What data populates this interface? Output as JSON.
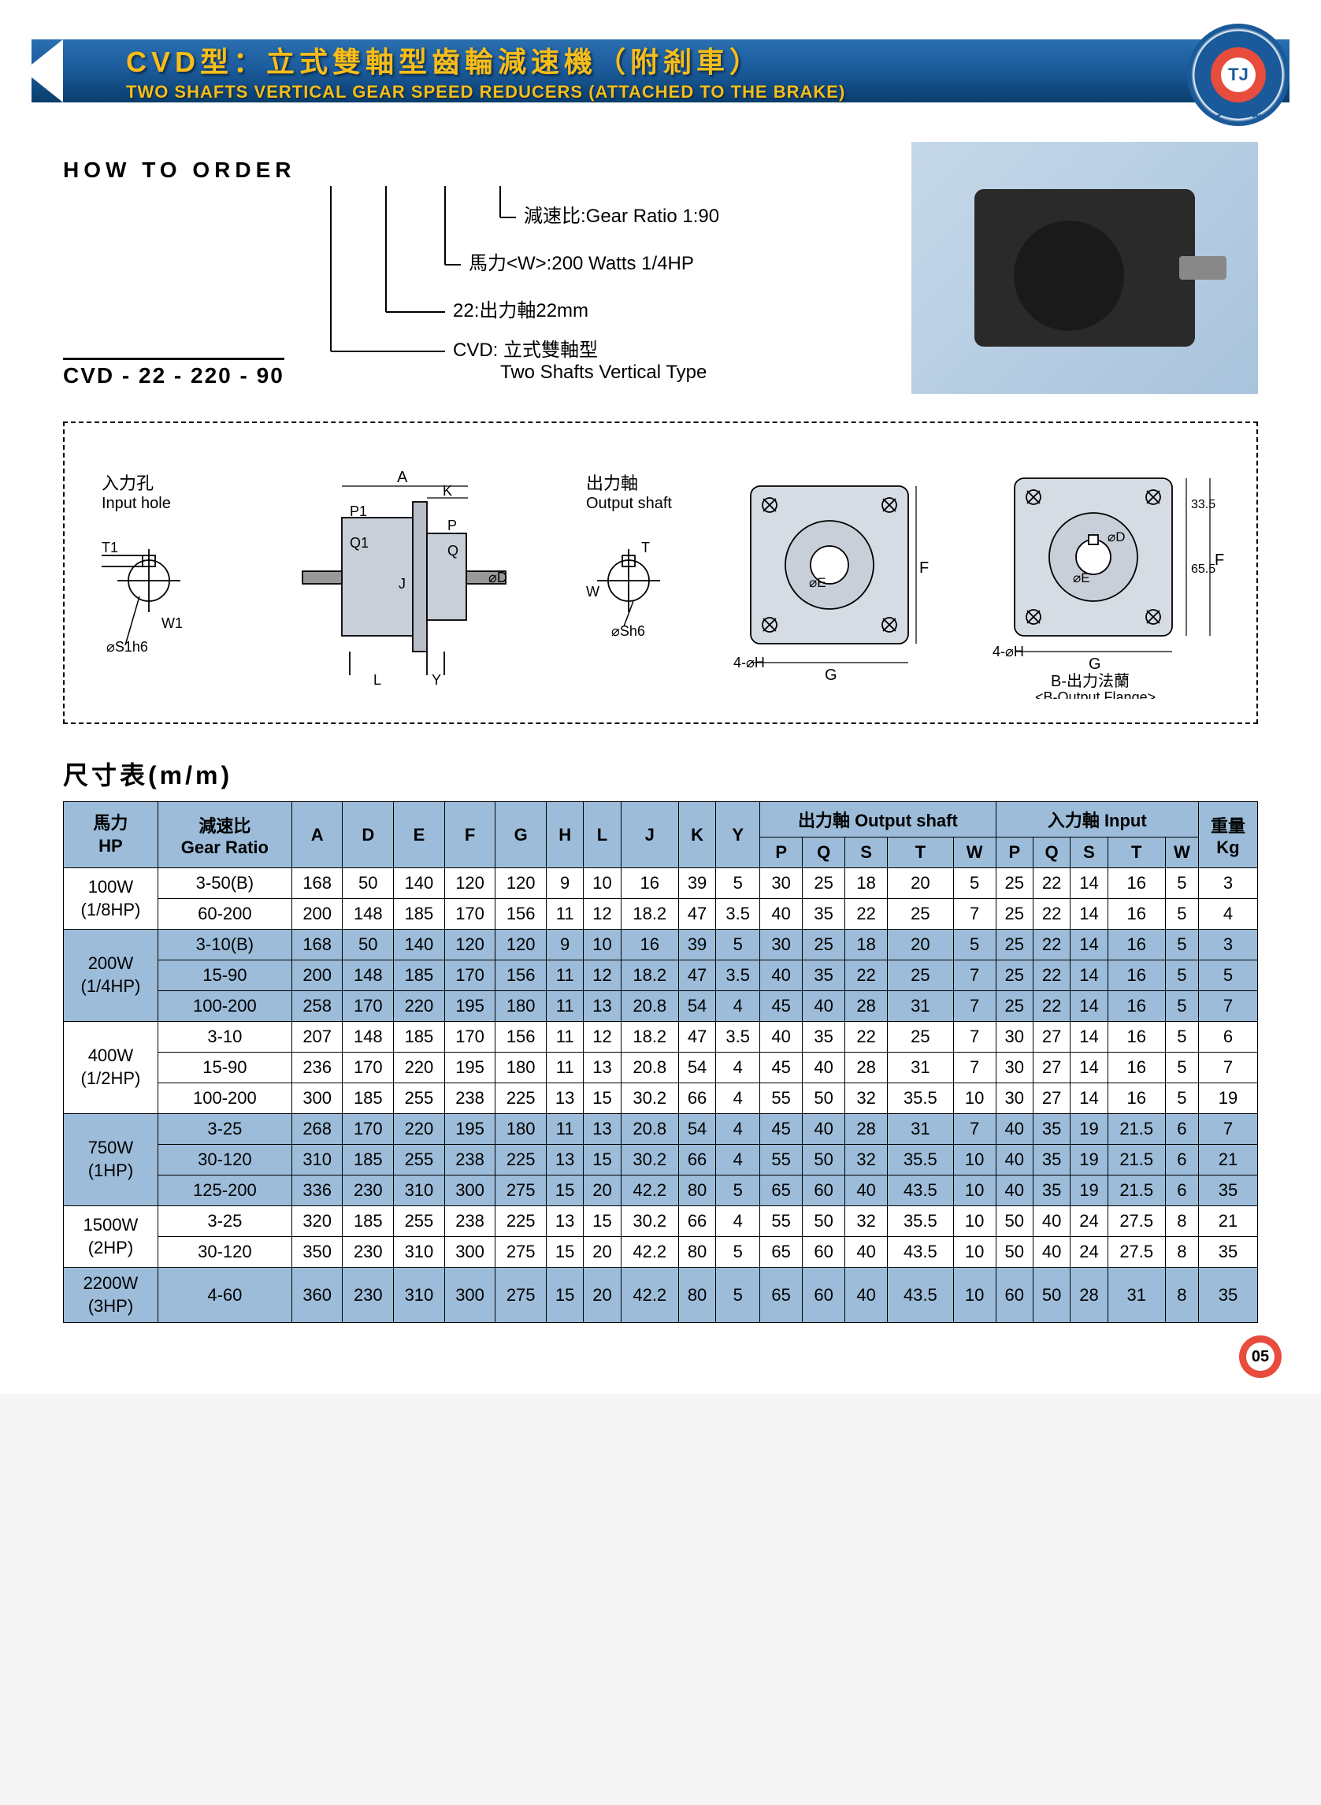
{
  "header": {
    "title_cn": "CVD型：立式雙軸型齒輪減速機（附剎車）",
    "title_en": "TWO SHAFTS VERTICAL GEAR SPEED REDUCERS (ATTACHED TO THE BRAKE)",
    "logo_tj": "TJ",
    "logo_text": "天機"
  },
  "order": {
    "title": "HOW  TO  ORDER",
    "code": "CVD - 22 - 220 - 90",
    "lines": [
      "減速比:Gear Ratio 1:90",
      "馬力<W>:200 Watts 1/4HP",
      "22:出力軸22mm",
      "CVD: 立式雙軸型"
    ],
    "line4_sub": "Two Shafts Vertical Type"
  },
  "diagram": {
    "input_hole_cn": "入力孔",
    "input_hole_en": "Input hole",
    "output_shaft_cn": "出力軸",
    "output_shaft_en": "Output shaft",
    "b_flange_cn": "B-出力法蘭",
    "b_flange_en": "<B-Output Flange>",
    "labels": {
      "A": "A",
      "K": "K",
      "P1": "P1",
      "Q1": "Q1",
      "P": "P",
      "Q": "Q",
      "T1": "T1",
      "W1": "W1",
      "T": "T",
      "W": "W",
      "J": "J",
      "D": "⌀D",
      "S1h6": "⌀S1h6",
      "Sh6": "⌀Sh6",
      "L": "L",
      "Y": "Y",
      "E": "⌀E",
      "F": "F",
      "G": "G",
      "H": "4-⌀H",
      "d33": "33.5",
      "d65": "65.5"
    }
  },
  "table": {
    "title": "尺寸表(m/m)",
    "colors": {
      "header_bg": "#9cbcd9",
      "border": "#000000"
    },
    "headers": {
      "hp": "馬力\nHP",
      "ratio": "減速比\nGear Ratio",
      "main": [
        "A",
        "D",
        "E",
        "F",
        "G",
        "H",
        "L",
        "J",
        "K",
        "Y"
      ],
      "out": "出力軸 Output shaft",
      "in": "入力軸 Input",
      "sub": [
        "P",
        "Q",
        "S",
        "T",
        "W"
      ],
      "kg": "重量\nKg"
    },
    "groups": [
      {
        "hp": "100W\n(1/8HP)",
        "blue": false,
        "rows": [
          {
            "ratio": "3-50(B)",
            "v": [
              168,
              50,
              140,
              120,
              120,
              9,
              10,
              16,
              39,
              5,
              30,
              25,
              18,
              20,
              5,
              25,
              22,
              14,
              16,
              5,
              3
            ]
          },
          {
            "ratio": "60-200",
            "v": [
              200,
              148,
              185,
              170,
              156,
              11,
              12,
              18.2,
              47,
              3.5,
              40,
              35,
              22,
              25,
              7,
              25,
              22,
              14,
              16,
              5,
              4
            ]
          }
        ]
      },
      {
        "hp": "200W\n(1/4HP)",
        "blue": true,
        "rows": [
          {
            "ratio": "3-10(B)",
            "v": [
              168,
              50,
              140,
              120,
              120,
              9,
              10,
              16,
              39,
              5,
              30,
              25,
              18,
              20,
              5,
              25,
              22,
              14,
              16,
              5,
              3
            ]
          },
          {
            "ratio": "15-90",
            "v": [
              200,
              148,
              185,
              170,
              156,
              11,
              12,
              18.2,
              47,
              3.5,
              40,
              35,
              22,
              25,
              7,
              25,
              22,
              14,
              16,
              5,
              5
            ]
          },
          {
            "ratio": "100-200",
            "v": [
              258,
              170,
              220,
              195,
              180,
              11,
              13,
              20.8,
              54,
              4,
              45,
              40,
              28,
              31,
              7,
              25,
              22,
              14,
              16,
              5,
              7
            ]
          }
        ]
      },
      {
        "hp": "400W\n(1/2HP)",
        "blue": false,
        "rows": [
          {
            "ratio": "3-10",
            "v": [
              207,
              148,
              185,
              170,
              156,
              11,
              12,
              18.2,
              47,
              3.5,
              40,
              35,
              22,
              25,
              7,
              30,
              27,
              14,
              16,
              5,
              6
            ]
          },
          {
            "ratio": "15-90",
            "v": [
              236,
              170,
              220,
              195,
              180,
              11,
              13,
              20.8,
              54,
              4,
              45,
              40,
              28,
              31,
              7,
              30,
              27,
              14,
              16,
              5,
              7
            ]
          },
          {
            "ratio": "100-200",
            "v": [
              300,
              185,
              255,
              238,
              225,
              13,
              15,
              30.2,
              66,
              4,
              55,
              50,
              32,
              35.5,
              10,
              30,
              27,
              14,
              16,
              5,
              19
            ]
          }
        ]
      },
      {
        "hp": "750W\n(1HP)",
        "blue": true,
        "rows": [
          {
            "ratio": "3-25",
            "v": [
              268,
              170,
              220,
              195,
              180,
              11,
              13,
              20.8,
              54,
              4,
              45,
              40,
              28,
              31,
              7,
              40,
              35,
              19,
              21.5,
              6,
              7
            ]
          },
          {
            "ratio": "30-120",
            "v": [
              310,
              185,
              255,
              238,
              225,
              13,
              15,
              30.2,
              66,
              4,
              55,
              50,
              32,
              35.5,
              10,
              40,
              35,
              19,
              21.5,
              6,
              21
            ]
          },
          {
            "ratio": "125-200",
            "v": [
              336,
              230,
              310,
              300,
              275,
              15,
              20,
              42.2,
              80,
              5,
              65,
              60,
              40,
              43.5,
              10,
              40,
              35,
              19,
              21.5,
              6,
              35
            ]
          }
        ]
      },
      {
        "hp": "1500W\n(2HP)",
        "blue": false,
        "rows": [
          {
            "ratio": "3-25",
            "v": [
              320,
              185,
              255,
              238,
              225,
              13,
              15,
              30.2,
              66,
              4,
              55,
              50,
              32,
              35.5,
              10,
              50,
              40,
              24,
              27.5,
              8,
              21
            ]
          },
          {
            "ratio": "30-120",
            "v": [
              350,
              230,
              310,
              300,
              275,
              15,
              20,
              42.2,
              80,
              5,
              65,
              60,
              40,
              43.5,
              10,
              50,
              40,
              24,
              27.5,
              8,
              35
            ]
          }
        ]
      },
      {
        "hp": "2200W\n(3HP)",
        "blue": true,
        "rows": [
          {
            "ratio": "4-60",
            "v": [
              360,
              230,
              310,
              300,
              275,
              15,
              20,
              42.2,
              80,
              5,
              65,
              60,
              40,
              43.5,
              10,
              60,
              50,
              28,
              31,
              8,
              35
            ]
          }
        ]
      }
    ]
  },
  "page_number": "05"
}
